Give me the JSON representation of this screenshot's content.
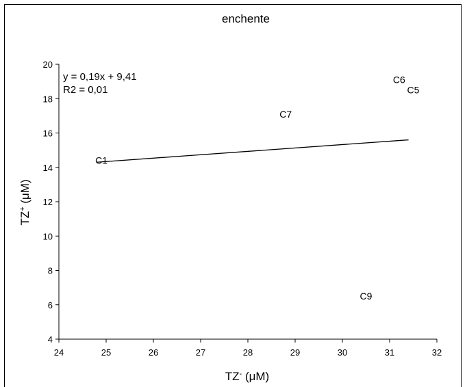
{
  "chart_data": {
    "type": "scatter",
    "title": "enchente",
    "xlabel": {
      "base": "TZ",
      "sup": "-",
      "unit": " (μM)"
    },
    "ylabel": {
      "base": "TZ",
      "sup": "+",
      "unit": " (μM)"
    },
    "xlim": [
      24,
      32
    ],
    "ylim": [
      4,
      20
    ],
    "xticks": [
      24,
      25,
      26,
      27,
      28,
      29,
      30,
      31,
      32
    ],
    "yticks": [
      4,
      6,
      8,
      10,
      12,
      14,
      16,
      18,
      20
    ],
    "grid": false,
    "points": [
      {
        "label": "C1",
        "x": 24.9,
        "y": 14.4
      },
      {
        "label": "C7",
        "x": 28.8,
        "y": 17.1
      },
      {
        "label": "C6",
        "x": 31.2,
        "y": 19.1
      },
      {
        "label": "C5",
        "x": 31.5,
        "y": 18.5
      },
      {
        "label": "C9",
        "x": 30.5,
        "y": 6.5
      }
    ],
    "trendline": {
      "x": [
        24.8,
        31.4
      ],
      "y": [
        14.3,
        15.6
      ],
      "equation": "y = 0,19x + 9,41",
      "r2": "R2 = 0,01"
    }
  }
}
